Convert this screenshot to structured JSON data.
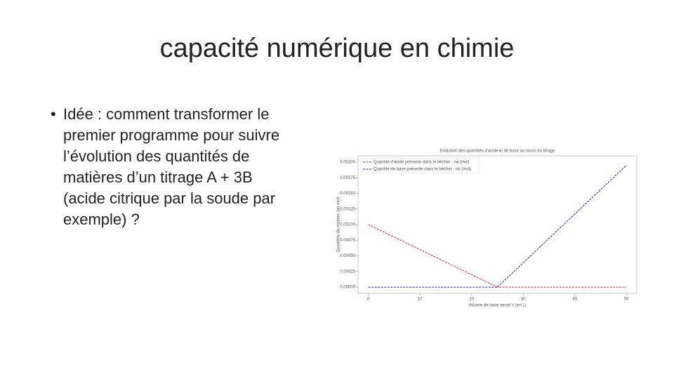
{
  "slide": {
    "title": "capacité numérique en chimie",
    "bullet": [
      "Idée : comment transformer le",
      "premier programme pour suivre",
      "l’évolution des quantités de",
      "matières d’un titrage A + 3B",
      "(acide citrique par la soude par",
      "exemple) ?"
    ]
  },
  "chart_data": {
    "type": "line",
    "title": "Evolution des quantités d'acide et de base au cours du titrage",
    "x_label": "Volume de base versé V (en L)",
    "y_label": "Quantités de matière (en mol)",
    "x": [
      0,
      25,
      50
    ],
    "series": [
      {
        "name": "Quantité d'acide présente dans le bécher - na (mol)",
        "color": "#d62728",
        "dash": true,
        "values": [
          0.001,
          0,
          0
        ]
      },
      {
        "name": "Quantité de base présente dans le bécher - nb (mol)",
        "color": "#1f1fbf",
        "dash": true,
        "values": [
          0,
          0,
          0.00195
        ]
      }
    ],
    "xlim": [
      -2,
      52
    ],
    "xticks": [
      0,
      10,
      20,
      30,
      40,
      50
    ],
    "ylim": [
      -0.0001,
      0.0021
    ],
    "yticks": [
      {
        "value": 0,
        "label": "0.00000"
      },
      {
        "value": 0.00025,
        "label": "0.00025"
      },
      {
        "value": 0.0005,
        "label": "0.00050"
      },
      {
        "value": 0.00075,
        "label": "0.00075"
      },
      {
        "value": 0.001,
        "label": "0.00100"
      },
      {
        "value": 0.00125,
        "label": "0.00125"
      },
      {
        "value": 0.0015,
        "label": "0.00150"
      },
      {
        "value": 0.00175,
        "label": "0.00175"
      },
      {
        "value": 0.002,
        "label": "0.00200"
      }
    ],
    "legend": "upper-left",
    "grid": false
  }
}
